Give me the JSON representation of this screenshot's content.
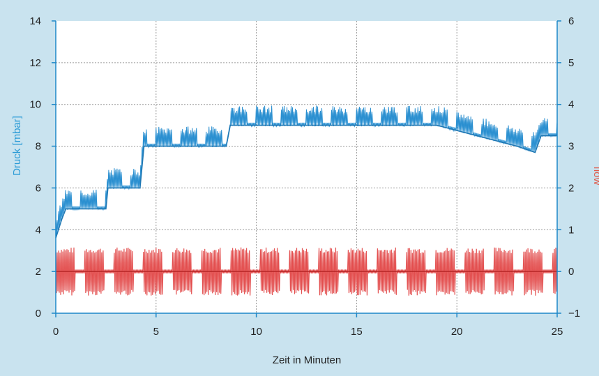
{
  "chart_data": {
    "type": "line",
    "xlabel": "Zeit in Minuten",
    "ylabel_left": "Druck [mbar]",
    "ylabel_right": "flow",
    "xlim": [
      0,
      25
    ],
    "ylim_left": [
      0,
      14
    ],
    "ylim_right": [
      -1,
      6
    ],
    "x_ticks": [
      0,
      5,
      10,
      15,
      20,
      25
    ],
    "y_left_ticks": [
      0,
      2,
      4,
      6,
      8,
      10,
      12,
      14
    ],
    "y_right_ticks": [
      -1,
      0,
      1,
      2,
      3,
      4,
      5,
      6
    ],
    "y_right_tick_labels": [
      "−1",
      "0",
      "1",
      "2",
      "3",
      "4",
      "5",
      "6"
    ],
    "grid": true,
    "colors": {
      "pressure": "#2a8fd0",
      "pressure_light": "#7fbfe8",
      "flow": "#e04040",
      "flow_light": "#f0a0a0",
      "left_axis_text": "#2a9bd6",
      "right_axis_text": "#e05a4a",
      "grid": "#9a9a9a",
      "axis": "#1e88c8",
      "background": "#c9e3ef",
      "plot_background": "#ffffff"
    },
    "series": [
      {
        "axis": "left",
        "x": [
          0,
          0.3,
          0.5,
          2.5,
          2.6,
          4.2,
          4.4,
          8.5,
          8.7,
          19,
          21,
          23,
          23.9,
          24.2,
          25
        ],
        "y": [
          3.6,
          4.5,
          5.0,
          5.0,
          6.0,
          6.0,
          8.0,
          8.0,
          9.0,
          9.0,
          8.5,
          8.0,
          7.7,
          8.5,
          8.5
        ]
      },
      {
        "axis": "right",
        "x": [
          0,
          25
        ],
        "y": [
          0,
          0
        ],
        "oscillation_amplitude": 0.55
      }
    ]
  }
}
